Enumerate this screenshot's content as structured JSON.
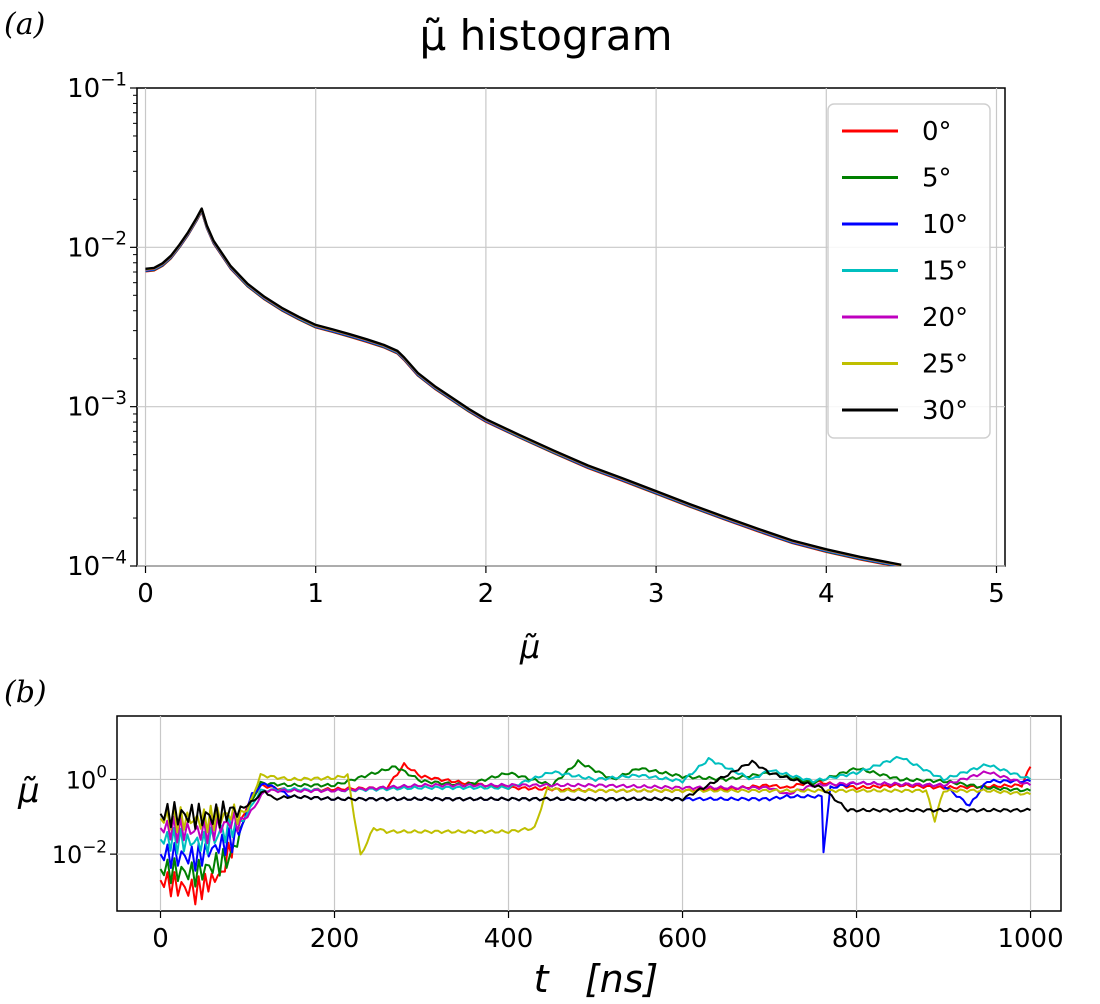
{
  "panel_labels": {
    "a": "(a)",
    "b": "(b)"
  },
  "chart_data": [
    {
      "type": "line",
      "title": "μ̃ histogram",
      "xlabel": "μ̃",
      "ylabel": "",
      "xlim": [
        -0.05,
        5.05
      ],
      "ylim": [
        0.0001,
        0.1
      ],
      "yscale": "log",
      "xticks": [
        "0",
        "1",
        "2",
        "3",
        "4",
        "5"
      ],
      "yticks": [
        {
          "base": "10",
          "exp": "−1",
          "value": 0.1
        },
        {
          "base": "10",
          "exp": "−2",
          "value": 0.01
        },
        {
          "base": "10",
          "exp": "−3",
          "value": 0.001
        },
        {
          "base": "10",
          "exp": "−4",
          "value": 0.0001
        }
      ],
      "grid": true,
      "legend_position": "top-right",
      "legend": [
        "0°",
        "5°",
        "10°",
        "15°",
        "20°",
        "25°",
        "30°"
      ],
      "colors": [
        "#ff0000",
        "#008000",
        "#0000ff",
        "#00bfbf",
        "#bf00bf",
        "#bfbf00",
        "#000000"
      ],
      "x": [
        0,
        0.05,
        0.1,
        0.15,
        0.2,
        0.25,
        0.3,
        0.33,
        0.36,
        0.4,
        0.5,
        0.6,
        0.7,
        0.8,
        0.9,
        1.0,
        1.1,
        1.2,
        1.3,
        1.4,
        1.48,
        1.52,
        1.6,
        1.7,
        1.8,
        1.9,
        2.0,
        2.2,
        2.4,
        2.6,
        2.8,
        3.0,
        3.2,
        3.4,
        3.6,
        3.8,
        4.0,
        4.2,
        4.44
      ],
      "y": [
        0.0072,
        0.0073,
        0.0078,
        0.0087,
        0.0102,
        0.0122,
        0.015,
        0.0172,
        0.0135,
        0.0108,
        0.0075,
        0.0058,
        0.0048,
        0.0041,
        0.0036,
        0.0032,
        0.003,
        0.0028,
        0.0026,
        0.0024,
        0.0022,
        0.002,
        0.0016,
        0.00132,
        0.00112,
        0.00095,
        0.00082,
        0.00065,
        0.00052,
        0.00042,
        0.00035,
        0.00029,
        0.00024,
        0.0002,
        0.000168,
        0.000142,
        0.000125,
        0.000112,
        0.0001
      ]
    },
    {
      "type": "line",
      "title": "",
      "xlabel": "t   [ns]",
      "ylabel": "μ̃",
      "xlim": [
        -50,
        1035
      ],
      "ylim": [
        0.0003,
        50
      ],
      "yscale": "log",
      "xticks": [
        "0",
        "200",
        "400",
        "600",
        "800",
        "1000"
      ],
      "yticks": [
        {
          "base": "10",
          "exp": "0",
          "value": 1
        },
        {
          "base": "10",
          "exp": "−2",
          "value": 0.01
        }
      ],
      "grid": true,
      "series": [
        {
          "name": "0°",
          "color": "#ff0000",
          "x": [
            0,
            40,
            70,
            90,
            100,
            115,
            150,
            200,
            260,
            280,
            300,
            350,
            400,
            450,
            500,
            560,
            600,
            650,
            700,
            720,
            750,
            800,
            850,
            900,
            950,
            990,
            1000
          ],
          "y": [
            0.002,
            0.001,
            0.003,
            0.06,
            0.2,
            0.7,
            0.5,
            0.55,
            0.6,
            2.5,
            1.2,
            0.8,
            0.6,
            0.55,
            0.5,
            0.5,
            0.5,
            0.55,
            0.7,
            0.6,
            0.9,
            0.6,
            0.7,
            0.6,
            0.65,
            0.7,
            2.2
          ]
        },
        {
          "name": "5°",
          "color": "#008000",
          "x": [
            0,
            40,
            80,
            100,
            115,
            150,
            200,
            270,
            300,
            350,
            400,
            450,
            480,
            520,
            550,
            600,
            650,
            700,
            750,
            800,
            850,
            900,
            950,
            1000
          ],
          "y": [
            0.004,
            0.003,
            0.008,
            0.15,
            0.8,
            0.7,
            0.7,
            2.2,
            0.9,
            0.7,
            1.5,
            0.7,
            3.0,
            1.0,
            2.0,
            1.2,
            1.0,
            1.5,
            0.8,
            2.0,
            1.0,
            0.9,
            0.6,
            0.5
          ]
        },
        {
          "name": "10°",
          "color": "#0000ff",
          "x": [
            0,
            40,
            90,
            105,
            120,
            150,
            200,
            300,
            400,
            500,
            600,
            700,
            720,
            760,
            762,
            770,
            800,
            900,
            930,
            950,
            1000
          ],
          "y": [
            0.01,
            0.008,
            0.03,
            0.4,
            0.8,
            0.35,
            0.3,
            0.3,
            0.3,
            0.3,
            0.3,
            0.3,
            0.35,
            0.35,
            0.012,
            0.6,
            0.8,
            0.7,
            0.2,
            0.9,
            0.9
          ]
        },
        {
          "name": "15°",
          "color": "#00bfbf",
          "x": [
            0,
            50,
            95,
            115,
            150,
            200,
            300,
            400,
            450,
            500,
            550,
            600,
            630,
            680,
            700,
            750,
            800,
            850,
            900,
            950,
            1000
          ],
          "y": [
            0.025,
            0.02,
            0.08,
            0.5,
            0.55,
            0.5,
            0.6,
            0.6,
            1.6,
            1.0,
            1.3,
            0.9,
            3.5,
            1.0,
            1.8,
            0.9,
            1.5,
            4.0,
            1.0,
            2.5,
            1.0
          ]
        },
        {
          "name": "20°",
          "color": "#bf00bf",
          "x": [
            0,
            50,
            100,
            120,
            150,
            200,
            300,
            400,
            500,
            600,
            700,
            720,
            750,
            800,
            900,
            950,
            1000
          ],
          "y": [
            0.05,
            0.04,
            0.1,
            0.5,
            0.5,
            0.5,
            0.7,
            0.7,
            0.7,
            0.6,
            0.6,
            0.4,
            0.7,
            0.8,
            0.7,
            1.6,
            0.7
          ]
        },
        {
          "name": "25°",
          "color": "#bfbf00",
          "x": [
            0,
            50,
            100,
            115,
            150,
            200,
            215,
            230,
            245,
            260,
            300,
            350,
            400,
            430,
            445,
            460,
            500,
            600,
            700,
            800,
            880,
            890,
            900,
            950,
            1000
          ],
          "y": [
            0.09,
            0.08,
            0.15,
            1.3,
            1.0,
            1.1,
            1.3,
            0.009,
            0.05,
            0.04,
            0.04,
            0.04,
            0.04,
            0.05,
            0.6,
            0.5,
            0.5,
            0.5,
            0.5,
            0.5,
            0.5,
            0.08,
            0.5,
            0.5,
            0.4
          ]
        },
        {
          "name": "30°",
          "color": "#000000",
          "x": [
            0,
            60,
            100,
            120,
            130,
            150,
            200,
            300,
            400,
            500,
            600,
            680,
            700,
            760,
            790,
            800,
            850,
            900,
            950,
            1000
          ],
          "y": [
            0.12,
            0.1,
            0.2,
            0.5,
            0.3,
            0.35,
            0.3,
            0.3,
            0.3,
            0.3,
            0.3,
            3.0,
            1.5,
            0.6,
            0.15,
            0.15,
            0.15,
            0.15,
            0.15,
            0.15
          ]
        }
      ]
    }
  ]
}
